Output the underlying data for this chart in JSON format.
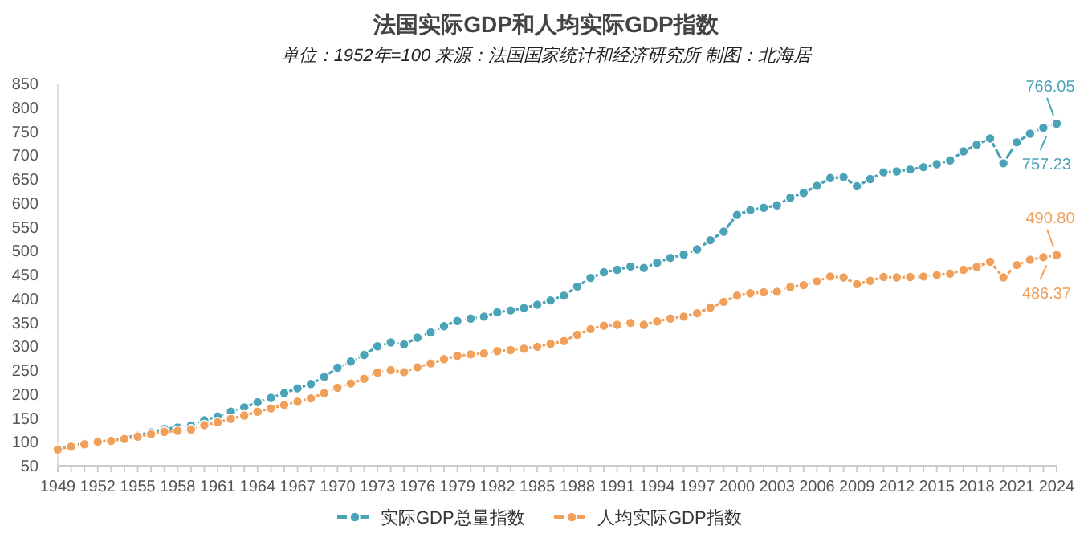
{
  "chart_data": {
    "type": "line",
    "title": "法国实际GDP和人均实际GDP指数",
    "subtitle": "单位：1952年=100  来源：法国国家统计和经济研究所 制图：北海居",
    "x": [
      1949,
      1950,
      1951,
      1952,
      1953,
      1954,
      1955,
      1956,
      1957,
      1958,
      1959,
      1960,
      1961,
      1962,
      1963,
      1964,
      1965,
      1966,
      1967,
      1968,
      1969,
      1970,
      1971,
      1972,
      1973,
      1974,
      1975,
      1976,
      1977,
      1978,
      1979,
      1980,
      1981,
      1982,
      1983,
      1984,
      1985,
      1986,
      1987,
      1988,
      1989,
      1990,
      1991,
      1992,
      1993,
      1994,
      1995,
      1996,
      1997,
      1998,
      1999,
      2000,
      2001,
      2002,
      2003,
      2004,
      2005,
      2006,
      2007,
      2008,
      2009,
      2010,
      2011,
      2012,
      2013,
      2014,
      2015,
      2016,
      2017,
      2018,
      2019,
      2020,
      2021,
      2022,
      2023,
      2024
    ],
    "series": [
      {
        "name": "实际GDP总量指数",
        "color": "#4ba3b8",
        "values": [
          85,
          92,
          97,
          100,
          103,
          108,
          114,
          120,
          127,
          130,
          134,
          145,
          153,
          163,
          172,
          183,
          192,
          202,
          212,
          221,
          236,
          255,
          268,
          282,
          300,
          308,
          304,
          318,
          329,
          342,
          353,
          358,
          362,
          371,
          375,
          380,
          387,
          396,
          406,
          425,
          443,
          455,
          460,
          467,
          464,
          475,
          485,
          492,
          503,
          522,
          540,
          575,
          585,
          590,
          595,
          611,
          621,
          636,
          652,
          654,
          635,
          650,
          664,
          666,
          670,
          675,
          681,
          689,
          708,
          722,
          735,
          683,
          727,
          745,
          757.23,
          766.05
        ],
        "value_labels": [
          null,
          null,
          null,
          null,
          null,
          null,
          null,
          null,
          null,
          null,
          null,
          null,
          null,
          null,
          null,
          null,
          null,
          null,
          null,
          null,
          null,
          null,
          null,
          null,
          null,
          null,
          null,
          null,
          null,
          null,
          null,
          null,
          null,
          null,
          null,
          null,
          null,
          null,
          null,
          null,
          null,
          null,
          null,
          null,
          null,
          null,
          null,
          null,
          null,
          null,
          null,
          null,
          null,
          null,
          null,
          null,
          null,
          null,
          null,
          null,
          null,
          null,
          null,
          null,
          null,
          null,
          null,
          null,
          null,
          null,
          null,
          null,
          null,
          null,
          "757.23",
          "766.05"
        ]
      },
      {
        "name": "人均实际GDP指数",
        "color": "#f0a05a",
        "values": [
          84,
          90,
          95,
          100,
          102,
          106,
          111,
          116,
          121,
          123,
          126,
          135,
          141,
          148,
          155,
          163,
          170,
          177,
          184,
          191,
          202,
          213,
          222,
          232,
          245,
          250,
          246,
          256,
          264,
          273,
          280,
          283,
          285,
          290,
          292,
          295,
          299,
          305,
          311,
          324,
          336,
          343,
          345,
          349,
          345,
          352,
          358,
          362,
          369,
          381,
          393,
          406,
          411,
          413,
          414,
          424,
          428,
          436,
          446,
          444,
          430,
          437,
          445,
          444,
          445,
          446,
          449,
          452,
          460,
          466,
          477,
          444,
          470,
          481,
          486.37,
          490.8
        ],
        "value_labels": [
          null,
          null,
          null,
          null,
          null,
          null,
          null,
          null,
          null,
          null,
          null,
          null,
          null,
          null,
          null,
          null,
          null,
          null,
          null,
          null,
          null,
          null,
          null,
          null,
          null,
          null,
          null,
          null,
          null,
          null,
          null,
          null,
          null,
          null,
          null,
          null,
          null,
          null,
          null,
          null,
          null,
          null,
          null,
          null,
          null,
          null,
          null,
          null,
          null,
          null,
          null,
          null,
          null,
          null,
          null,
          null,
          null,
          null,
          null,
          null,
          null,
          null,
          null,
          null,
          null,
          null,
          null,
          null,
          null,
          null,
          null,
          null,
          null,
          null,
          "486.37",
          "490.80"
        ]
      }
    ],
    "xlim": [
      1949,
      2024
    ],
    "xticks": [
      1949,
      1952,
      1955,
      1958,
      1961,
      1964,
      1967,
      1970,
      1973,
      1976,
      1979,
      1982,
      1985,
      1988,
      1991,
      1994,
      1997,
      2000,
      2003,
      2006,
      2009,
      2012,
      2015,
      2018,
      2021,
      2024
    ],
    "ylim": [
      50,
      850
    ],
    "yticks": [
      50,
      100,
      150,
      200,
      250,
      300,
      350,
      400,
      450,
      500,
      550,
      600,
      650,
      700,
      750,
      800,
      850
    ],
    "marker": "circle",
    "line_style": "dashed",
    "legend": "bottom",
    "grid": false
  }
}
